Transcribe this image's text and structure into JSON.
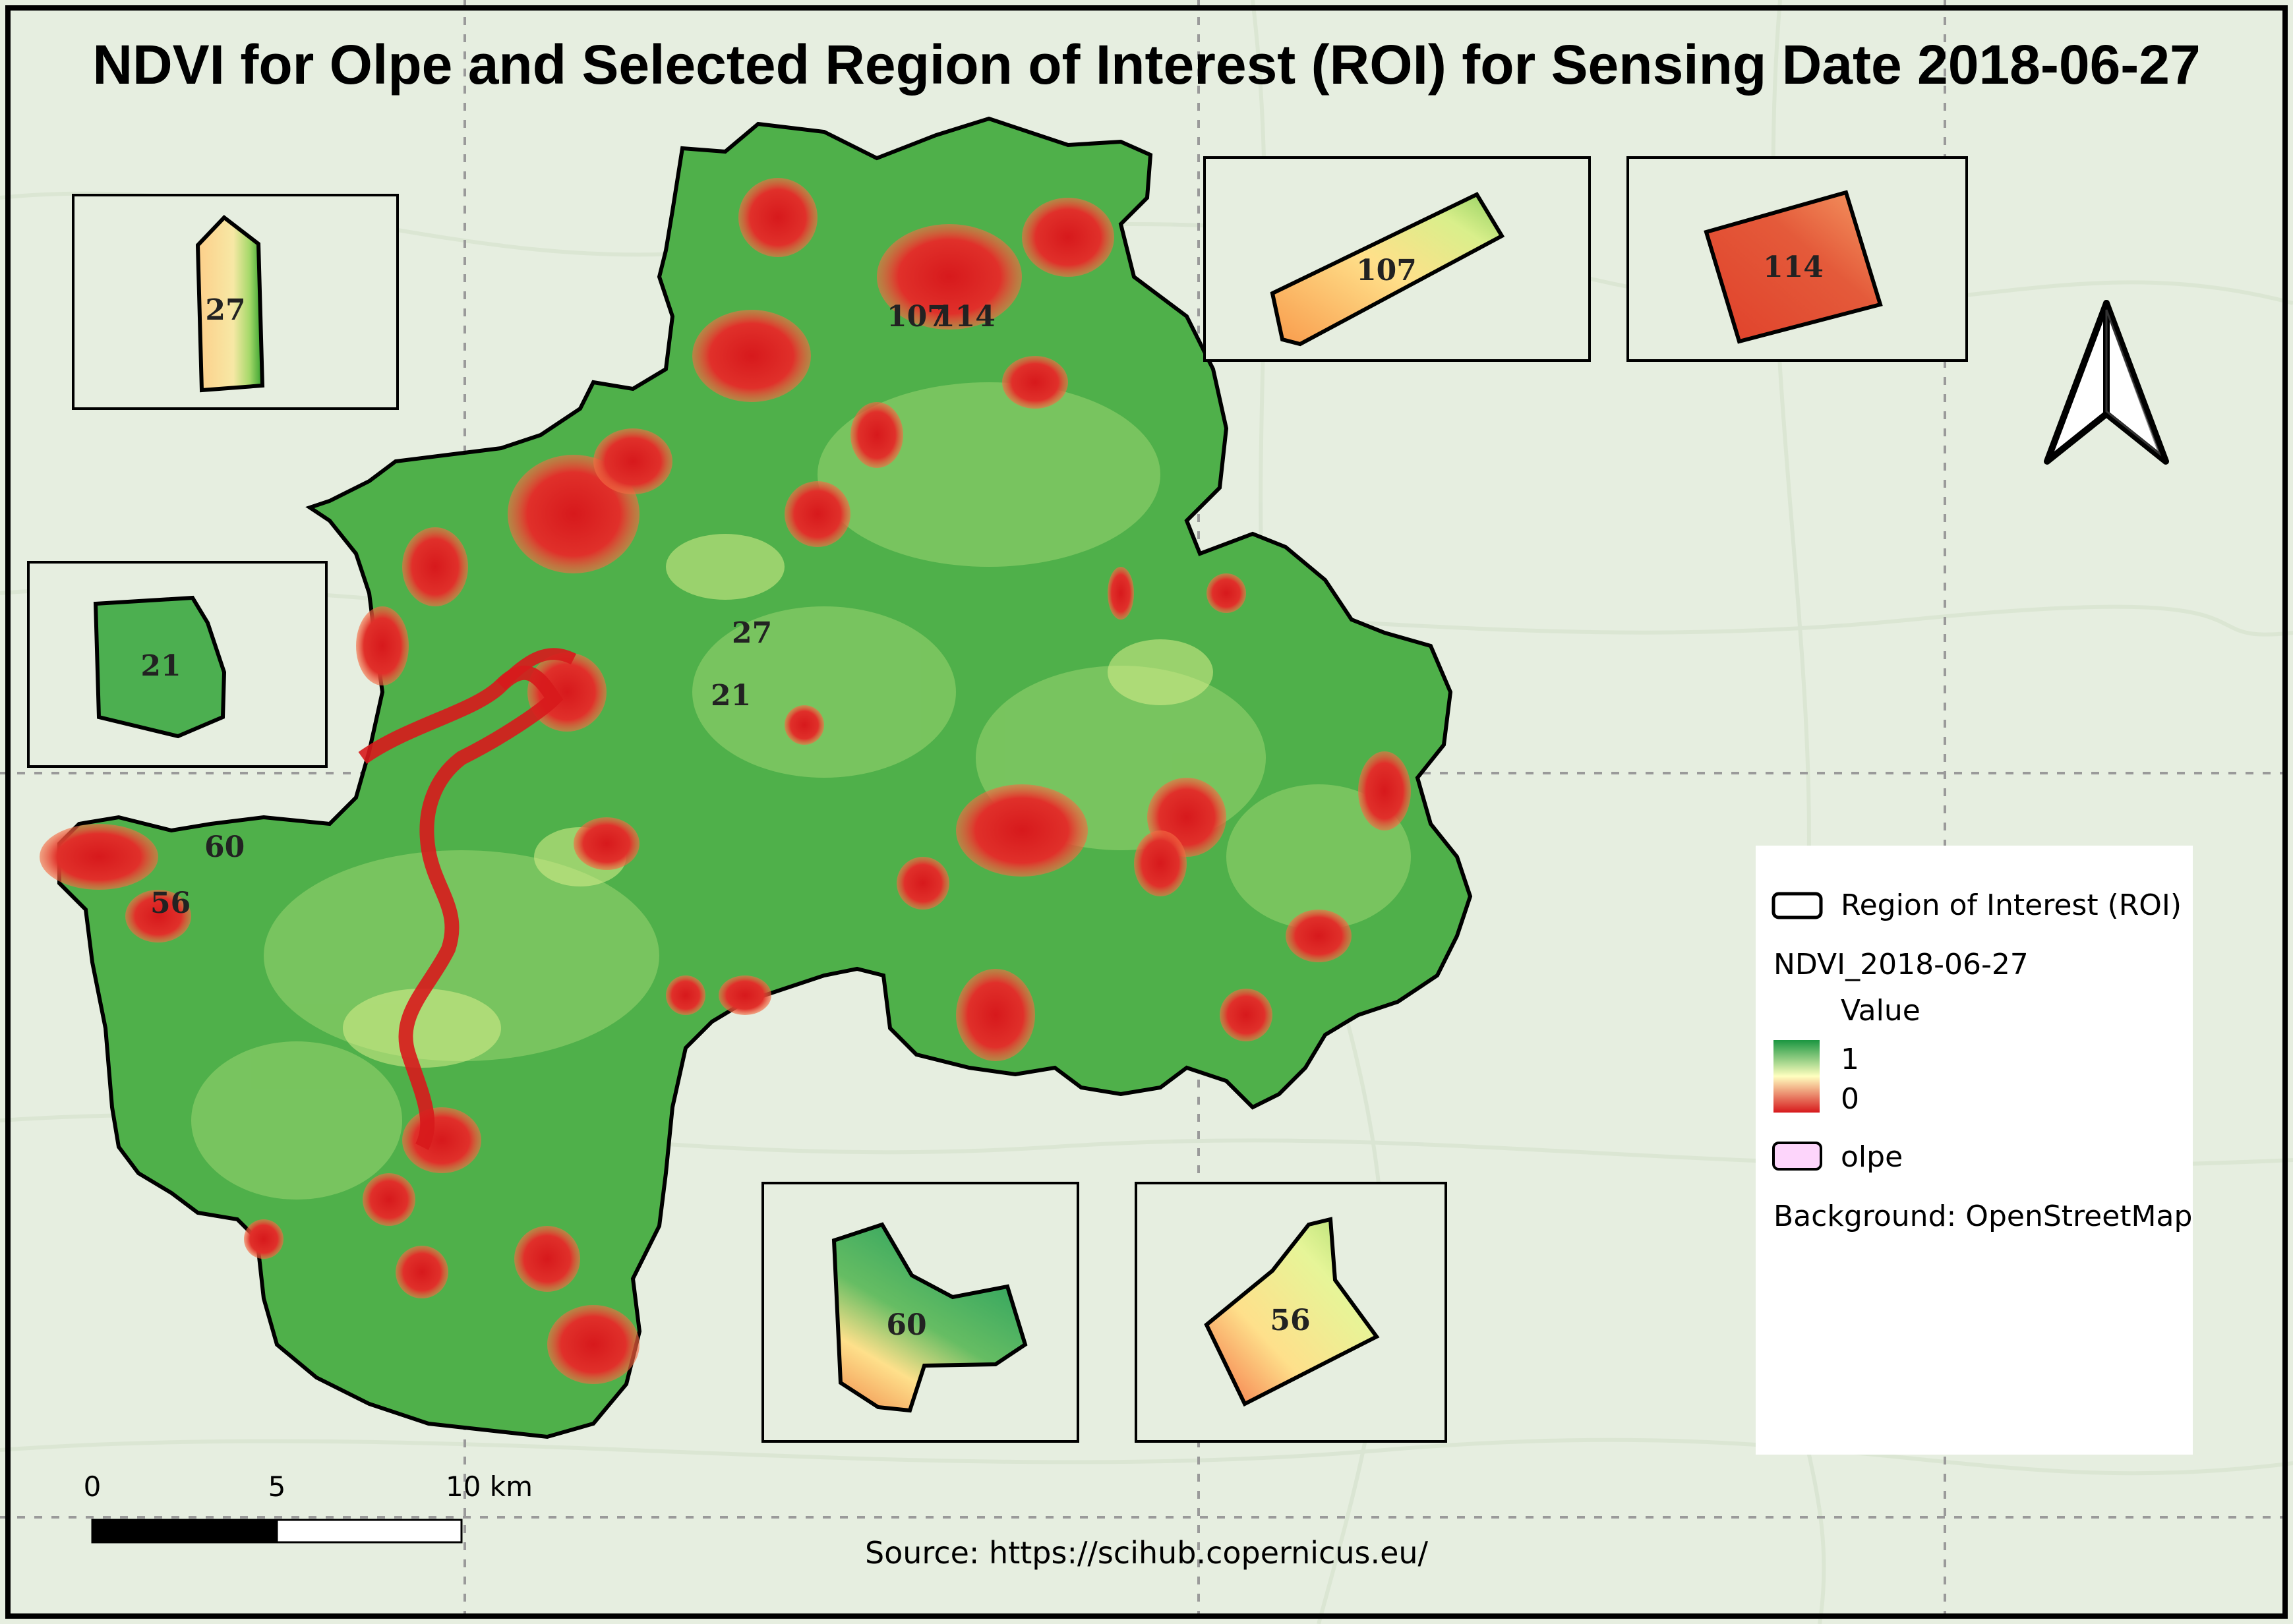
{
  "title": "NDVI for Olpe and Selected Region of Interest (ROI) for Sensing Date 2018-06-27",
  "labels": {
    "roi_27": "27",
    "roi_21": "21",
    "roi_107": "107",
    "roi_114": "114",
    "roi_60": "60",
    "roi_56": "56"
  },
  "legend": {
    "roi": "Region of Interest (ROI)",
    "layer": "NDVI_2018-06-27",
    "value": "Value",
    "max": "1",
    "min": "0",
    "olpe": "olpe",
    "background": "Background: OpenStreetMap"
  },
  "scalebar": {
    "t0": "0",
    "t5": "5",
    "t10": "10 km"
  },
  "source": "Source: https://scihub.copernicus.eu/",
  "colors": {
    "ndvi_high": "#1a9641",
    "ndvi_mid": "#ffffbf",
    "ndvi_low": "#d7191c",
    "olpe_fill": "#fdd5fb",
    "background": "#e6eee0"
  }
}
